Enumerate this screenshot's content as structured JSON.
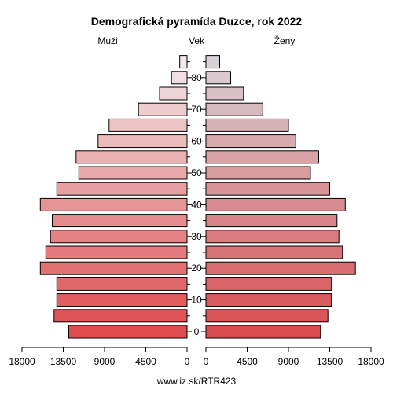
{
  "chart_data": {
    "type": "bar",
    "orientation": "horizontal",
    "layout": "population-pyramid",
    "title": "Demografická pyramída Duzce, rok 2022",
    "left_label": "Muži",
    "center_label": "Vek",
    "right_label": "Ženy",
    "footer": "www.iz.sk/RTR423",
    "age_groups": [
      "0-4",
      "5-9",
      "10-14",
      "15-19",
      "20-24",
      "25-29",
      "30-34",
      "35-39",
      "40-44",
      "45-49",
      "50-54",
      "55-59",
      "60-64",
      "65-69",
      "70-74",
      "75-79",
      "80-84",
      "85+"
    ],
    "age_ticks": [
      "0",
      "10",
      "20",
      "30",
      "40",
      "50",
      "60",
      "70",
      "80"
    ],
    "xlim": [
      0,
      18000
    ],
    "x_ticks_left": [
      "18000",
      "13500",
      "9000",
      "4500",
      "0"
    ],
    "x_ticks_right": [
      "0",
      "4500",
      "9000",
      "13500",
      "18000"
    ],
    "series": [
      {
        "name": "Muži",
        "values": [
          12900,
          14500,
          14200,
          14200,
          16000,
          15400,
          14900,
          14700,
          16000,
          14200,
          11800,
          12100,
          9700,
          8500,
          5300,
          3000,
          1700,
          800
        ]
      },
      {
        "name": "Ženy",
        "values": [
          12500,
          13300,
          13700,
          13700,
          16300,
          14900,
          14500,
          14300,
          15200,
          13500,
          11400,
          12300,
          9800,
          9000,
          6200,
          4100,
          2700,
          1500
        ]
      }
    ],
    "colors": {
      "male_young": "#de4c4e",
      "male_old": "#f0e8ea",
      "female_young": "#d94d4f",
      "female_old": "#d7d1d6",
      "outline": "#000000"
    }
  }
}
